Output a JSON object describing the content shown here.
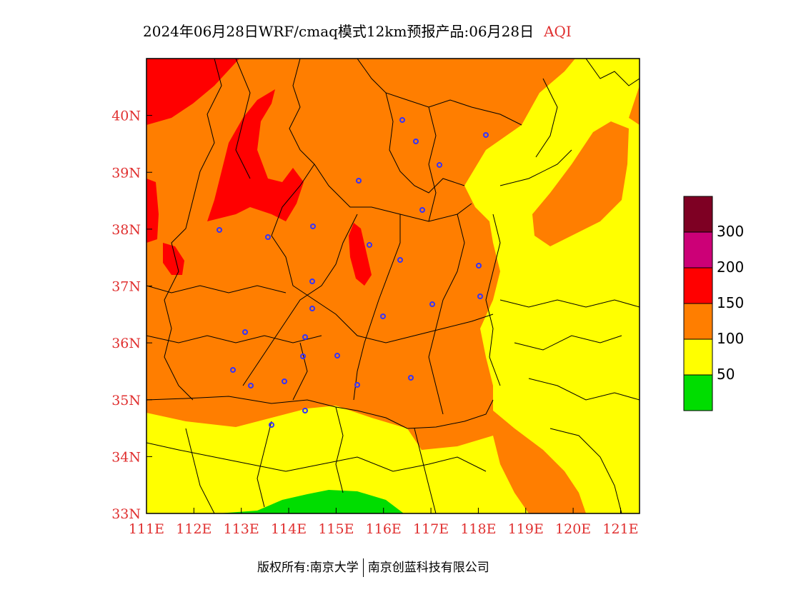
{
  "title": {
    "main": "2024年06月28日WRF/cmaq模式12km预报产品:06月28日",
    "variable": "AQI"
  },
  "axes": {
    "x_ticks": [
      "111E",
      "112E",
      "113E",
      "114E",
      "115E",
      "116E",
      "117E",
      "118E",
      "119E",
      "120E",
      "121E"
    ],
    "y_ticks": [
      "40N",
      "39N",
      "38N",
      "37N",
      "36N",
      "35N",
      "34N",
      "33N"
    ],
    "lon_range": [
      111,
      121.4
    ],
    "lat_range": [
      33,
      41
    ]
  },
  "legend": {
    "colors": [
      "#00dd00",
      "#ffff00",
      "#ff7e00",
      "#ff0000",
      "#cc0077",
      "#7e0023"
    ],
    "labels": [
      "50",
      "100",
      "150",
      "200",
      "300"
    ]
  },
  "zone_colors": {
    "good": "#00dd00",
    "moderate": "#ffff00",
    "sensitive": "#ff7e00",
    "unhealthy": "#ff0000"
  },
  "footer": {
    "left": "版权所有:南京大学",
    "right": "南京创蓝科技有限公司"
  }
}
